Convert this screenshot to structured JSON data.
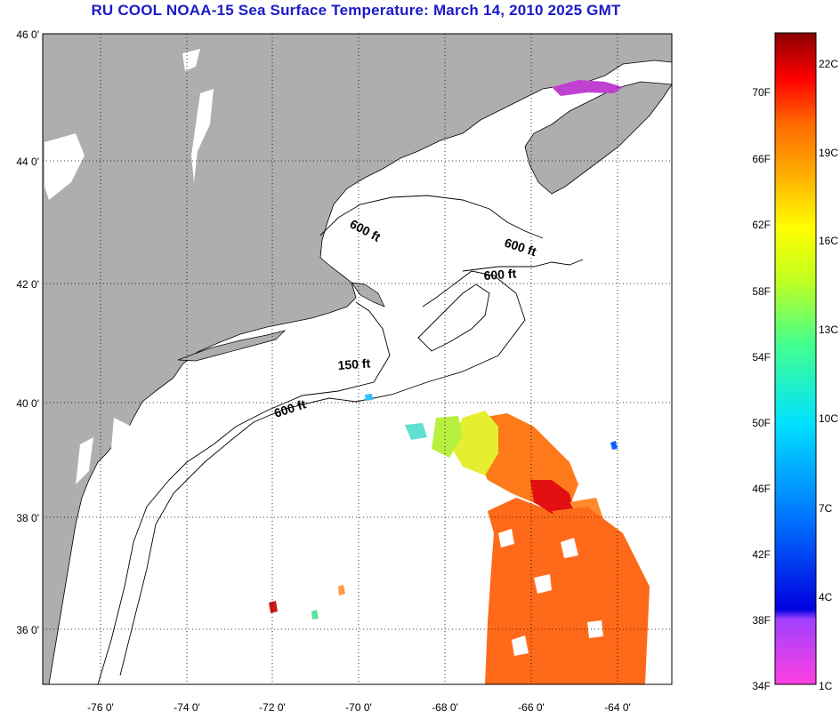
{
  "title": "RU COOL  NOAA-15  Sea Surface Temperature:  March 14, 2010 2025 GMT",
  "map": {
    "lon_labels": [
      "-76 0'",
      "-74 0'",
      "-72 0'",
      "-70 0'",
      "-68 0'",
      "-66 0'",
      "-64 0'"
    ],
    "lat_labels": [
      "46 0'",
      "44 0'",
      "42 0'",
      "40 0'",
      "38 0'",
      "36 0'"
    ],
    "contour_labels": [
      "600 ft",
      "600 ft",
      "600 ft",
      "150 ft",
      "600 ft"
    ],
    "colors": {
      "land": "#aeaeae",
      "ocean": "#ffffff"
    }
  },
  "colorbar": {
    "f_labels": [
      "70F",
      "66F",
      "62F",
      "58F",
      "54F",
      "50F",
      "46F",
      "42F",
      "38F",
      "34F"
    ],
    "c_labels": [
      "22C",
      "19C",
      "16C",
      "13C",
      "10C",
      "7C",
      "4C",
      "1C"
    ]
  }
}
